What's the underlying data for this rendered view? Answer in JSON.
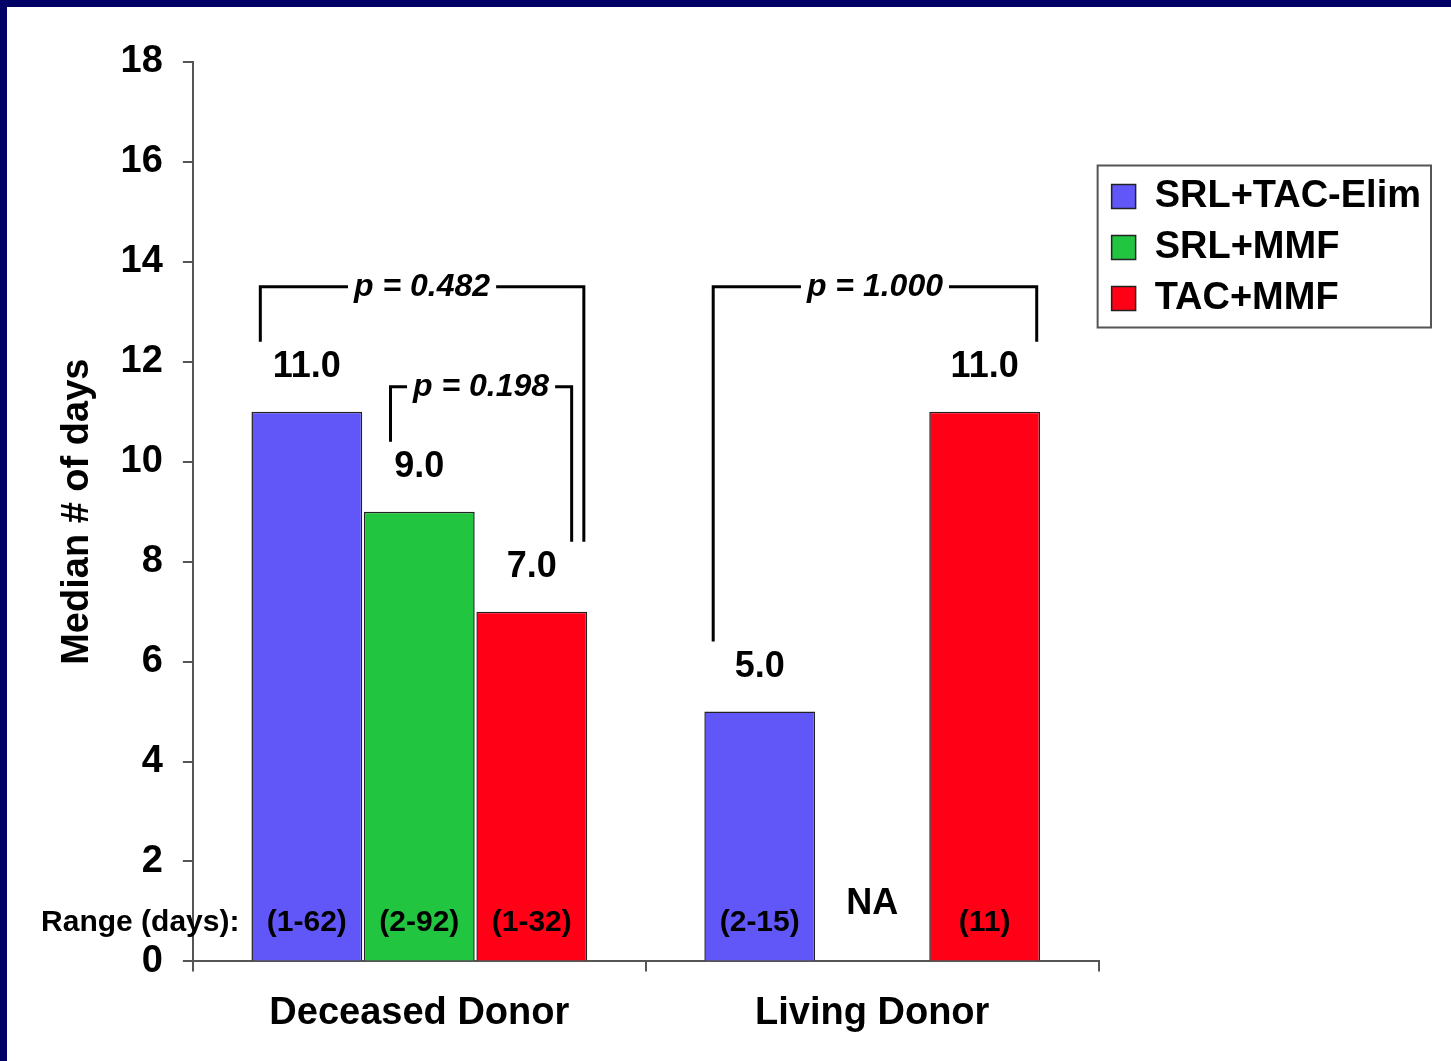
{
  "chart_data": {
    "type": "bar",
    "ylabel": "Median # of days",
    "categories": [
      "Deceased Donor",
      "Living Donor"
    ],
    "series": [
      {
        "name": "SRL+TAC-Elim",
        "color": "#6157f9",
        "values": [
          11,
          5
        ],
        "value_labels": [
          "11.0",
          "5.0"
        ]
      },
      {
        "name": "SRL+MMF",
        "color": "#22c540",
        "values": [
          9,
          null
        ],
        "value_labels": [
          "9.0",
          "NA"
        ]
      },
      {
        "name": "TAC+MMF",
        "color": "#ff0016",
        "values": [
          7,
          11
        ],
        "value_labels": [
          "7.0",
          "11.0"
        ]
      }
    ],
    "ylim": [
      0,
      18
    ],
    "yticks": [
      0,
      2,
      4,
      6,
      8,
      10,
      12,
      14,
      16,
      18
    ],
    "grid": false,
    "legend": "right",
    "annotations": [
      "Range (days):",
      "(1-62)",
      "(2-92)",
      "(1-32)",
      "(2-15)",
      "(11)",
      "p = 0.482",
      "p = 0.198",
      "p = 1.000"
    ]
  }
}
